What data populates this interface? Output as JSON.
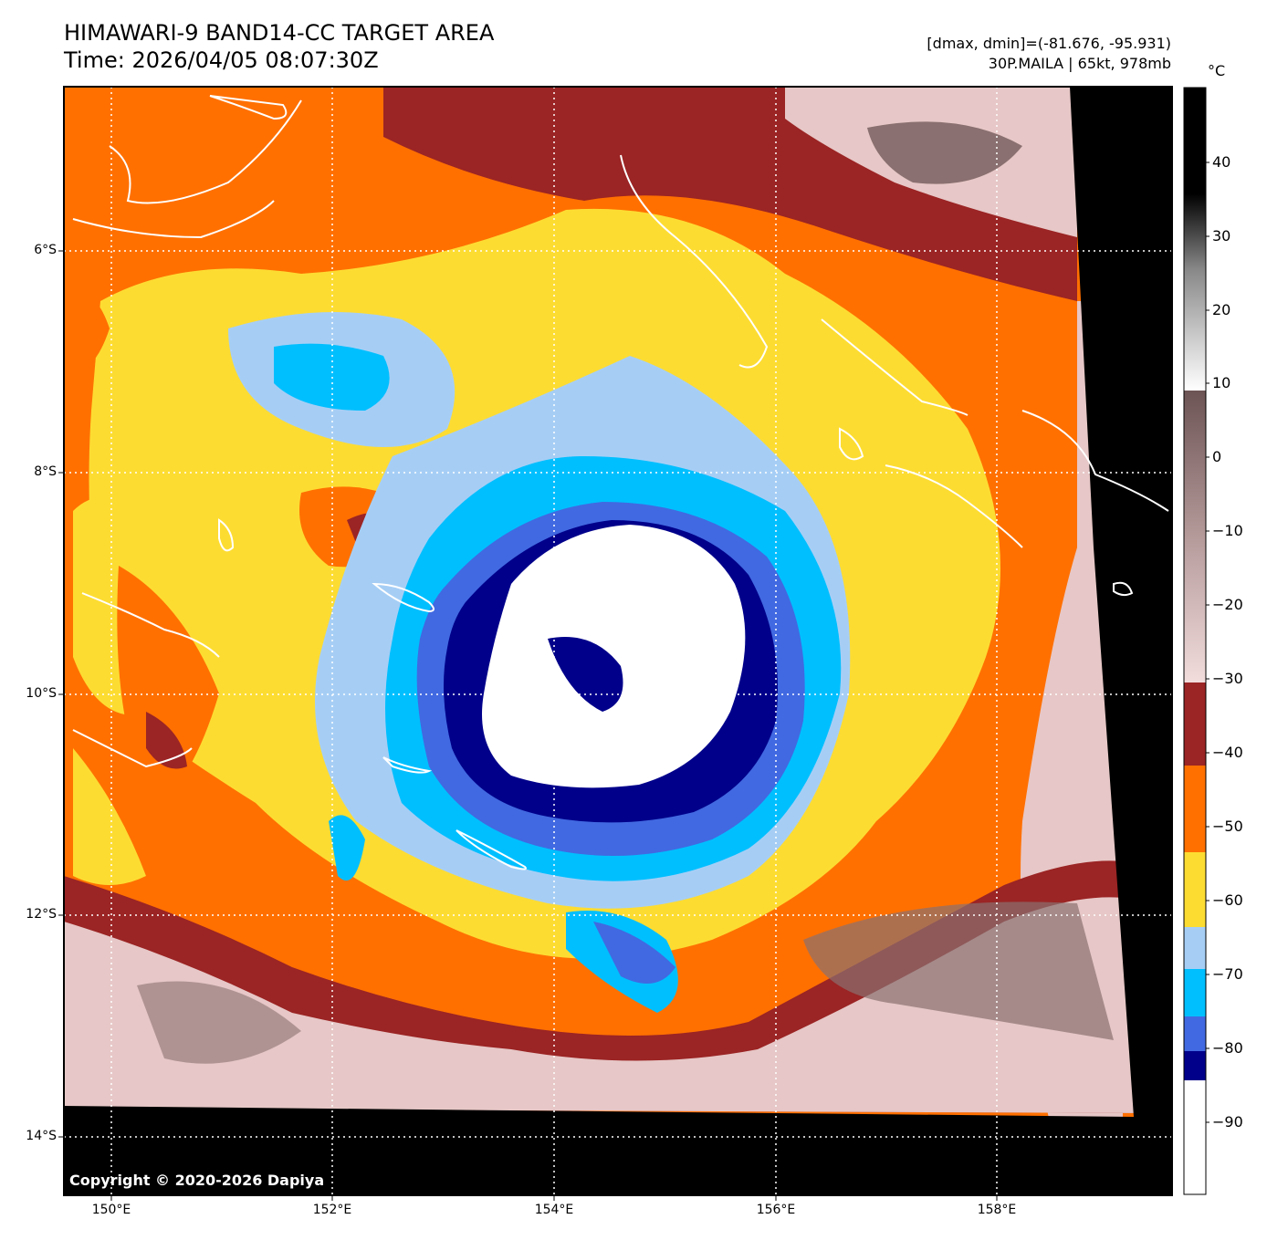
{
  "title_line1": "HIMAWARI-9 BAND14-CC TARGET AREA",
  "title_line2": "Time: 2026/04/05 08:07:30Z",
  "info_line1": "[dmax, dmin]=(-81.676, -95.931)",
  "info_line2": "30P.MAILA | 65kt, 978mb",
  "unit": "°C",
  "lat_labels": [
    "6°S",
    "8°S",
    "10°S",
    "12°S",
    "14°S"
  ],
  "lon_labels": [
    "150°E",
    "152°E",
    "154°E",
    "156°E",
    "158°E"
  ],
  "colorbar_labels": [
    "40",
    "30",
    "20",
    "10",
    "0",
    "−10",
    "−20",
    "−30",
    "−40",
    "−50",
    "−60",
    "−70",
    "−80",
    "−90"
  ],
  "copyright": "Copyright © 2020-2026 Dapiya",
  "colors": {
    "dark_blue": "#00008b",
    "royal_blue": "#4169e1",
    "deep_sky": "#00bfff",
    "light_blue": "#a6cef5",
    "yellow": "#fddc32",
    "orange": "#ff7000",
    "dark_red": "#9b2424",
    "pinkish": "#e7c7c7",
    "gray": "#8a7070",
    "black": "#000000"
  }
}
